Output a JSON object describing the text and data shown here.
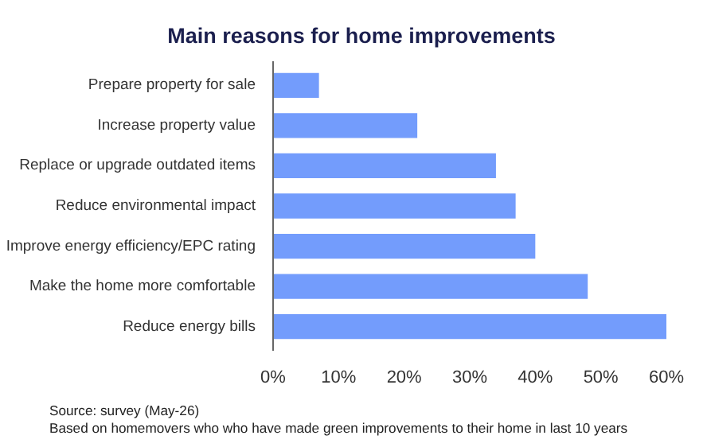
{
  "chart_data": {
    "type": "bar",
    "orientation": "horizontal",
    "title": "Main reasons for home improvements",
    "categories": [
      "Prepare property for sale",
      "Increase property value",
      "Replace or upgrade outdated items",
      "Reduce environmental impact",
      "Improve energy efficiency/EPC rating",
      "Make the home more comfortable",
      "Reduce energy bills"
    ],
    "values": [
      7,
      22,
      34,
      37,
      40,
      48,
      60
    ],
    "color": "#739cfc",
    "xlim": [
      0,
      60
    ],
    "xticks": [
      {
        "value": 0,
        "label": "0%"
      },
      {
        "value": 10,
        "label": "10%"
      },
      {
        "value": 20,
        "label": "20%"
      },
      {
        "value": 30,
        "label": "30%"
      },
      {
        "value": 40,
        "label": "40%"
      },
      {
        "value": 50,
        "label": "50%"
      },
      {
        "value": 60,
        "label": "60%"
      }
    ],
    "grid": false,
    "annotations": [
      "Source: survey (May-26)",
      "Based on homemovers who who have made green improvements to their home in last 10 years"
    ]
  }
}
